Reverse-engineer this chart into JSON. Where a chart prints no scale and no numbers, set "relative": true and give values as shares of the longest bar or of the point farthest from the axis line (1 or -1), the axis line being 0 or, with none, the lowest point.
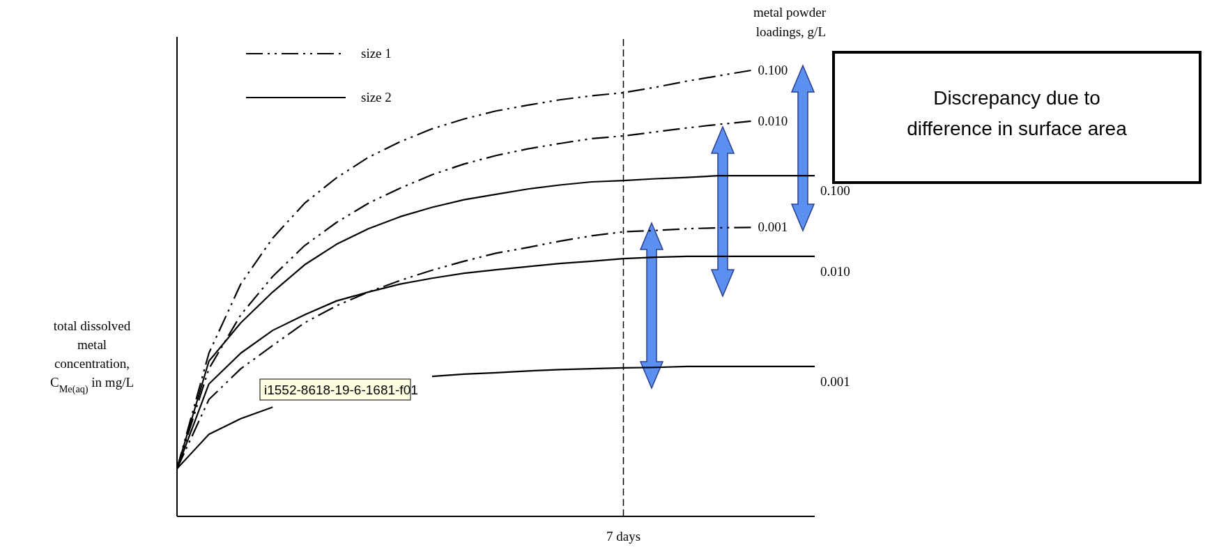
{
  "chart_data": {
    "type": "line",
    "relative": true,
    "ylabel": "total dissolved metal concentration, C$_{Me(aq)}$ in mg/L",
    "categories": [
      null,
      null,
      null,
      null,
      null,
      null,
      null,
      null,
      null,
      null,
      null,
      null,
      null,
      null,
      null,
      null,
      null,
      null,
      null,
      null,
      null
    ],
    "legend": "top right",
    "series": [
      {
        "name": "0.100",
        "color": "#000000",
        "line_style": "dashed",
        "values": [
          0.107,
          0.366,
          0.521,
          0.624,
          0.702,
          0.759,
          0.805,
          0.84,
          0.869,
          0.891,
          0.909,
          0.922,
          0.934,
          0.943,
          0.95,
          0.962,
          0.976,
          0.988,
          1,
          null,
          null
        ]
      },
      {
        "name": "0.010",
        "color": "#000000",
        "line_style": "dashed",
        "values": [
          0.107,
          0.331,
          0.452,
          0.538,
          0.607,
          0.659,
          0.702,
          0.736,
          0.766,
          0.79,
          0.809,
          0.824,
          0.836,
          0.847,
          0.853,
          0.862,
          0.871,
          0.879,
          0.886,
          null,
          null
        ]
      },
      {
        "name": "0.100",
        "color": "#000000",
        "line_style": "solid",
        "values": [
          0.107,
          0.348,
          0.434,
          0.503,
          0.564,
          0.61,
          0.645,
          0.672,
          0.693,
          0.71,
          0.722,
          0.734,
          0.743,
          0.75,
          0.753,
          0.757,
          0.76,
          0.764,
          0.764,
          0.764,
          0.764
        ]
      },
      {
        "name": "0.001",
        "color": "#000000",
        "line_style": "dashed",
        "values": [
          0.107,
          0.262,
          0.331,
          0.383,
          0.434,
          0.472,
          0.503,
          0.529,
          0.552,
          0.572,
          0.59,
          0.603,
          0.617,
          0.629,
          0.638,
          0.641,
          0.645,
          0.647,
          0.648,
          null,
          null
        ]
      },
      {
        "name": "0.010",
        "color": "#000000",
        "line_style": "solid",
        "values": [
          0.107,
          0.297,
          0.366,
          0.417,
          0.452,
          0.483,
          0.503,
          0.521,
          0.534,
          0.545,
          0.553,
          0.56,
          0.567,
          0.572,
          0.578,
          0.581,
          0.583,
          0.583,
          0.583,
          0.583,
          0.583
        ]
      },
      {
        "name": "0.001",
        "color": "#000000",
        "line_style": "solid",
        "values": [
          0.107,
          0.184,
          0.219,
          0.245,
          null,
          null,
          null,
          null,
          0.314,
          0.319,
          0.322,
          0.326,
          0.329,
          0.331,
          0.333,
          0.334,
          0.336,
          0.336,
          0.336,
          0.336,
          0.336
        ]
      }
    ],
    "annotations": [
      "size 1",
      "size 2",
      "metal powder loadings, g/L",
      "Discrepancy due to difference in surface area",
      "i1552-8618-19-6-1681-f01",
      "7 days"
    ]
  }
}
